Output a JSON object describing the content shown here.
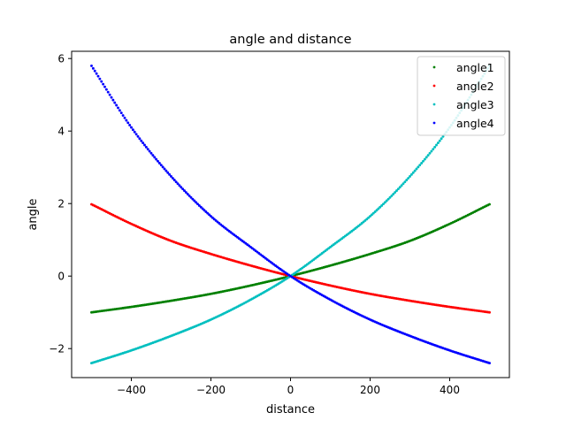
{
  "chart_data": {
    "type": "scatter",
    "title": "angle and distance",
    "xlabel": "distance",
    "ylabel": "angle",
    "xlim": [
      -550,
      550
    ],
    "ylim": [
      -2.8,
      6.2
    ],
    "xticks": [
      -400,
      -200,
      0,
      200,
      400
    ],
    "xtick_labels": [
      "−400",
      "−200",
      "0",
      "200",
      "400"
    ],
    "yticks": [
      -2,
      0,
      2,
      4,
      6
    ],
    "ytick_labels": [
      "−2",
      "0",
      "2",
      "4",
      "6"
    ],
    "grid": false,
    "legend_position": "top-right",
    "series": [
      {
        "name": "angle1",
        "color": "#008000",
        "x": [
          -500,
          -400,
          -300,
          -200,
          -100,
          0,
          100,
          200,
          300,
          400,
          500
        ],
        "y": [
          -1.0,
          -0.85,
          -0.68,
          -0.49,
          -0.26,
          0.0,
          0.29,
          0.61,
          0.97,
          1.44,
          1.98
        ]
      },
      {
        "name": "angle2",
        "color": "#ff0000",
        "x": [
          -500,
          -400,
          -300,
          -200,
          -100,
          0,
          100,
          200,
          300,
          400,
          500
        ],
        "y": [
          1.98,
          1.44,
          0.97,
          0.61,
          0.29,
          0.0,
          -0.26,
          -0.49,
          -0.68,
          -0.85,
          -1.0
        ]
      },
      {
        "name": "angle3",
        "color": "#00bfbf",
        "x": [
          -500,
          -400,
          -300,
          -200,
          -100,
          0,
          100,
          200,
          300,
          400,
          500
        ],
        "y": [
          -2.4,
          -2.05,
          -1.65,
          -1.2,
          -0.65,
          0.0,
          0.8,
          1.65,
          2.75,
          4.1,
          5.8
        ]
      },
      {
        "name": "angle4",
        "color": "#0000ff",
        "x": [
          -500,
          -400,
          -300,
          -200,
          -100,
          0,
          100,
          200,
          300,
          400,
          500
        ],
        "y": [
          5.8,
          4.1,
          2.75,
          1.65,
          0.8,
          0.0,
          -0.65,
          -1.2,
          -1.65,
          -2.05,
          -2.4
        ]
      }
    ]
  }
}
